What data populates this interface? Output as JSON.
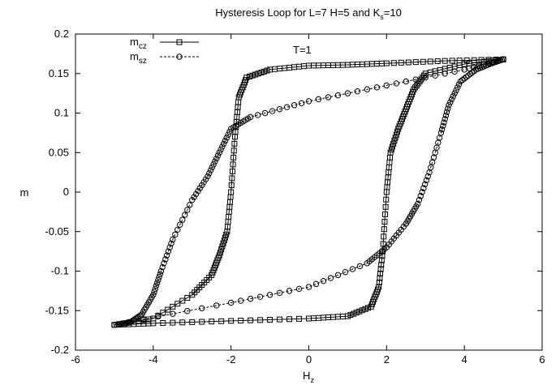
{
  "chart_data": {
    "type": "scatter",
    "title": {
      "prefix": "Hysteresis Loop for L=7 H=5 and K",
      "sub": "s",
      "suffix": "=10"
    },
    "xlabel": {
      "main": "H",
      "sub": "z"
    },
    "ylabel": "m",
    "xlim": [
      -6,
      6
    ],
    "ylim": [
      -0.2,
      0.2
    ],
    "xticks": [
      -6,
      -4,
      -2,
      0,
      2,
      4,
      6
    ],
    "yticks": [
      -0.2,
      -0.15,
      -0.1,
      -0.05,
      0,
      0.05,
      0.1,
      0.15,
      0.2
    ],
    "annotation": "T=1",
    "legend_position": "top-left",
    "series": [
      {
        "name": {
          "main": "m",
          "sub": "cz"
        },
        "marker": "square",
        "line": "solid",
        "color": "#000000",
        "x": [
          5.0,
          3.5,
          2.0,
          1.0,
          0.0,
          -1.0,
          -1.6,
          -1.8,
          -1.9,
          -2.0,
          -2.1,
          -2.3,
          -2.5,
          -3.0,
          -4.0,
          -5.0,
          -4.0,
          -2.0,
          0.0,
          1.0,
          1.6,
          1.8,
          1.9,
          2.0,
          2.1,
          2.3,
          2.5,
          2.7,
          3.0,
          4.0,
          5.0
        ],
        "y": [
          0.168,
          0.166,
          0.163,
          0.161,
          0.16,
          0.155,
          0.145,
          0.12,
          0.07,
          0.0,
          -0.05,
          -0.08,
          -0.105,
          -0.13,
          -0.16,
          -0.168,
          -0.166,
          -0.163,
          -0.16,
          -0.157,
          -0.145,
          -0.12,
          -0.075,
          0.0,
          0.05,
          0.08,
          0.105,
          0.13,
          0.15,
          0.162,
          0.168
        ]
      },
      {
        "name": {
          "main": "m",
          "sub": "sz"
        },
        "marker": "circle",
        "line": "dashed",
        "color": "#000000",
        "x": [
          5.0,
          4.0,
          2.0,
          0.0,
          -1.5,
          -2.0,
          -2.3,
          -2.6,
          -3.0,
          -3.5,
          -3.8,
          -4.0,
          -4.3,
          -4.6,
          -5.0,
          -2.0,
          0.0,
          1.5,
          2.0,
          2.5,
          2.8,
          3.1,
          3.4,
          3.6,
          3.9,
          4.3,
          4.7,
          5.0
        ],
        "y": [
          0.168,
          0.155,
          0.135,
          0.115,
          0.095,
          0.08,
          0.05,
          0.02,
          -0.01,
          -0.06,
          -0.1,
          -0.13,
          -0.155,
          -0.165,
          -0.168,
          -0.14,
          -0.12,
          -0.09,
          -0.07,
          -0.04,
          -0.015,
          0.025,
          0.075,
          0.11,
          0.14,
          0.155,
          0.163,
          0.168
        ]
      }
    ]
  }
}
